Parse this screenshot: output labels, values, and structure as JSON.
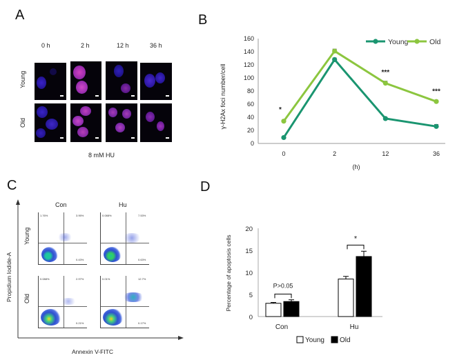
{
  "panel_a": {
    "letter": "A",
    "time_labels": [
      "0 h",
      "2 h",
      "12 h",
      "36 h"
    ],
    "row_labels": [
      "Young",
      "Old"
    ],
    "treatment": "8 mM HU"
  },
  "panel_b": {
    "letter": "B",
    "significance": [
      "*",
      "***",
      "***"
    ]
  },
  "panel_c": {
    "letter": "C",
    "column_labels": [
      "Con",
      "Hu"
    ],
    "row_labels": [
      "Young",
      "Old"
    ],
    "y_axis_label": "Propidium Iodide-A",
    "x_axis_label": "Annexin V-FITC",
    "quadrants": {
      "young_con": {
        "q1": "1.76%",
        "q2": "3.95%",
        "q3": "0.43%"
      },
      "young_hu": {
        "q1": "0.088%",
        "q2": "7.53%",
        "q3": "0.63%"
      },
      "old_con": {
        "q1": "0.088%",
        "q2": "2.97%",
        "q3": "0.21%"
      },
      "old_hu": {
        "q1": "0.01%",
        "q2": "12.7%",
        "q3": "0.17%"
      }
    }
  },
  "panel_d": {
    "letter": "D",
    "p_label": "P>0.05",
    "sig_label": "*"
  },
  "chart_data": [
    {
      "type": "line",
      "title": "",
      "xlabel": "(h)",
      "ylabel": "γ-H2Ax foci number/cell",
      "categories": [
        "0",
        "2",
        "12",
        "36"
      ],
      "ylim": [
        0,
        160
      ],
      "yticks": [
        "0",
        "20",
        "40",
        "60",
        "80",
        "100",
        "120",
        "140",
        "160"
      ],
      "series": [
        {
          "name": "Young",
          "color": "#1a9570",
          "values": [
            9,
            128,
            38,
            26
          ],
          "errors": [
            1.5,
            2.5,
            2,
            3
          ]
        },
        {
          "name": "Old",
          "color": "#8cc63f",
          "values": [
            34,
            141,
            92,
            64
          ],
          "errors": [
            2,
            3,
            3,
            2
          ]
        }
      ],
      "legend": "top-right"
    },
    {
      "type": "bar",
      "title": "",
      "xlabel": "",
      "ylabel": "Percentage of apoptosis cells",
      "categories": [
        "Con",
        "Hu"
      ],
      "ylim": [
        0,
        20
      ],
      "yticks": [
        "0",
        "5",
        "10",
        "15",
        "20"
      ],
      "series": [
        {
          "name": "Young",
          "color": "#ffffff",
          "values": [
            3.0,
            8.5
          ],
          "errors": [
            0.2,
            0.6
          ]
        },
        {
          "name": "Old",
          "color": "#000000",
          "values": [
            3.4,
            13.6
          ],
          "errors": [
            0.4,
            1.2
          ]
        }
      ],
      "legend": "bottom-center"
    }
  ]
}
